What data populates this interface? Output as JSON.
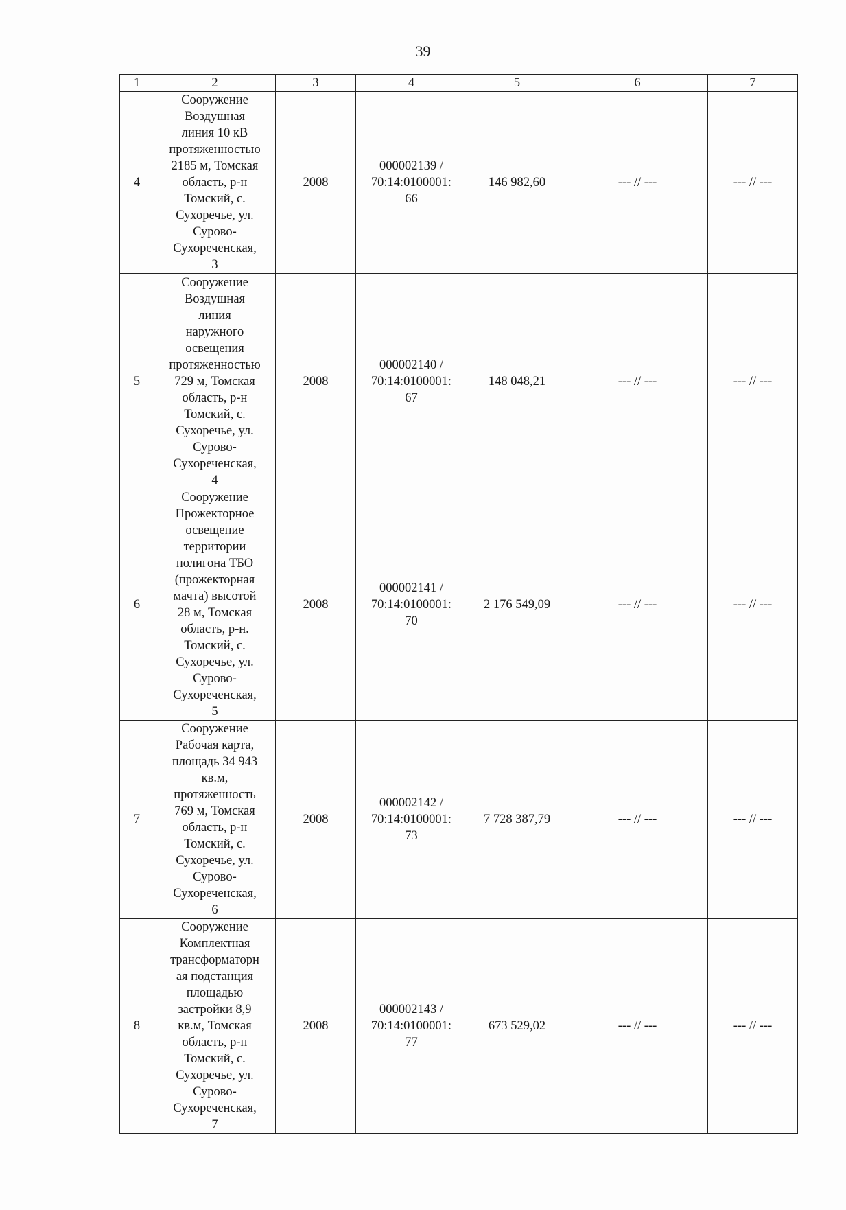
{
  "page_number": "39",
  "headers": [
    "1",
    "2",
    "3",
    "4",
    "5",
    "6",
    "7"
  ],
  "rows": [
    {
      "num": "4",
      "desc": "Сооружение\nВоздушная\nлиния 10 кВ\nпротяженностью\n2185 м, Томская\nобласть, р-н\nТомский, с.\nСухоречье, ул.\nСурово-\nСухореченская,\n3",
      "year": "2008",
      "code": "000002139 /\n70:14:0100001:\n66",
      "value": "146 982,60",
      "c6": "--- // ---",
      "c7": "--- // ---"
    },
    {
      "num": "5",
      "desc": "Сооружение\nВоздушная\nлиния\nнаружного\nосвещения\nпротяженностью\n729 м, Томская\nобласть, р-н\nТомский, с.\nСухоречье, ул.\nСурово-\nСухореченская,\n4",
      "year": "2008",
      "code": "000002140 /\n70:14:0100001:\n67",
      "value": "148 048,21",
      "c6": "--- // ---",
      "c7": "--- // ---"
    },
    {
      "num": "6",
      "desc": "Сооружение\nПрожекторное\nосвещение\nтерритории\nполигона ТБО\n(прожекторная\nмачта) высотой\n28 м, Томская\nобласть, р-н.\nТомский, с.\nСухоречье, ул.\nСурово-\nСухореченская,\n5",
      "year": "2008",
      "code": "000002141 /\n70:14:0100001:\n70",
      "value": "2 176 549,09",
      "c6": "--- // ---",
      "c7": "--- // ---"
    },
    {
      "num": "7",
      "desc": "Сооружение\nРабочая карта,\nплощадь 34 943\nкв.м,\nпротяженность\n769 м, Томская\nобласть, р-н\nТомский, с.\nСухоречье, ул.\nСурово-\nСухореченская,\n6",
      "year": "2008",
      "code": "000002142 /\n70:14:0100001:\n73",
      "value": "7 728 387,79",
      "c6": "--- // ---",
      "c7": "--- // ---"
    },
    {
      "num": "8",
      "desc": "Сооружение\nКомплектная\nтрансформаторн\nая подстанция\nплощадью\nзастройки 8,9\nкв.м, Томская\nобласть, р-н\nТомский, с.\nСухоречье, ул.\nСурово-\nСухореченская,\n7",
      "year": "2008",
      "code": "000002143 /\n70:14:0100001:\n77",
      "value": "673 529,02",
      "c6": "--- // ---",
      "c7": "--- // ---"
    }
  ]
}
